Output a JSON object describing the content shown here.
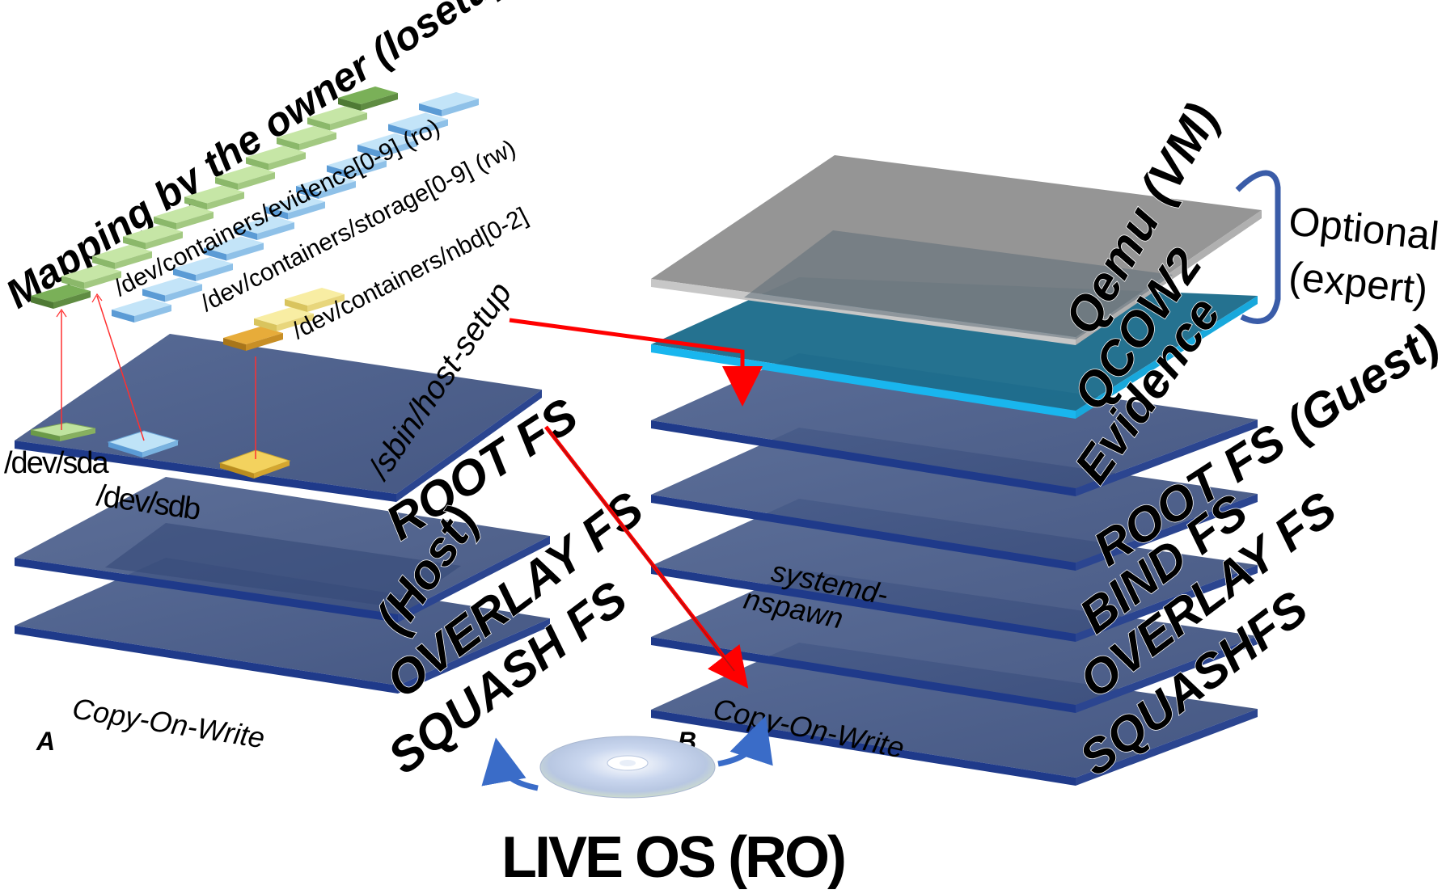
{
  "stack_a": {
    "marker": "A",
    "layers": {
      "root": "ROOT FS",
      "root_sub": "(Host)",
      "overlay": "OVERLAY FS",
      "squash": "SQUASH FS"
    },
    "host_setup": "/sbin/host-setup",
    "cow": "Copy-On-Write",
    "devices": {
      "sda": "/dev/sda",
      "sdb": "/dev/sdb"
    }
  },
  "mapping": {
    "title": "Mapping by the owner (losetup)",
    "evidence": "/dev/containers/evidence[0-9] (ro)",
    "storage": "/dev/containers/storage[0-9] (rw)",
    "nbd": "/dev/containers/nbd[0-2]"
  },
  "stack_b": {
    "marker": "B",
    "layers": {
      "qemu": "Qemu (VM)",
      "qcow2": "QCOW2",
      "evidence": "Evidence",
      "root": "ROOT FS (Guest)",
      "bind": "BIND FS",
      "overlay": "OVERLAY FS",
      "squash": "SQUASHFS"
    },
    "nspawn_1": "systemd-",
    "nspawn_2": "nspawn",
    "cow": "Copy-On-Write",
    "optional_1": "Optional",
    "optional_2": "(expert)"
  },
  "live_os": "LIVE OS  (RO)",
  "colors": {
    "layer_navy": "#455883",
    "layer_edge": "#1f3a8a",
    "qemu_gray": "#8c8c8c",
    "qcow_teal": "#1e7391",
    "qcow_edge": "#18b4ec",
    "evidence_green": "#bfe39e",
    "evidence_green_dark": "#6b9a48",
    "storage_blue": "#bfe3f7",
    "nbd_yellow": "#f7ea9a",
    "nbd_orange": "#e2a12e",
    "arrow_red": "#ff0000",
    "bracket_blue": "#3a5ca8"
  }
}
